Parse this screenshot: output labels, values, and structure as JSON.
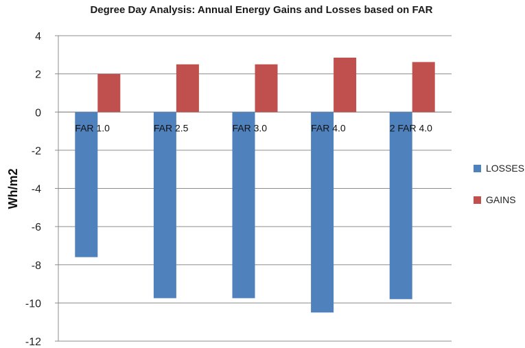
{
  "chart_data": {
    "type": "bar",
    "title": "Degree Day Analysis: Annual Energy Gains and Losses based on FAR",
    "xlabel": "",
    "ylabel": "Wh/m2",
    "ylim": [
      -12,
      4
    ],
    "yticks": [
      4,
      2,
      0,
      -2,
      -4,
      -6,
      -8,
      -10,
      -12
    ],
    "grid": true,
    "legend_position": "right",
    "categories": [
      "FAR 1.0",
      "FAR 2.5",
      "FAR 3.0",
      "FAR 4.0",
      "2 FAR 4.0"
    ],
    "series": [
      {
        "name": "LOSSES",
        "color": "#4f81bd",
        "values": [
          -7.6,
          -9.75,
          -9.75,
          -10.5,
          -9.8
        ]
      },
      {
        "name": "GAINS",
        "color": "#c0504d",
        "values": [
          2.0,
          2.5,
          2.5,
          2.85,
          2.62
        ]
      }
    ]
  }
}
